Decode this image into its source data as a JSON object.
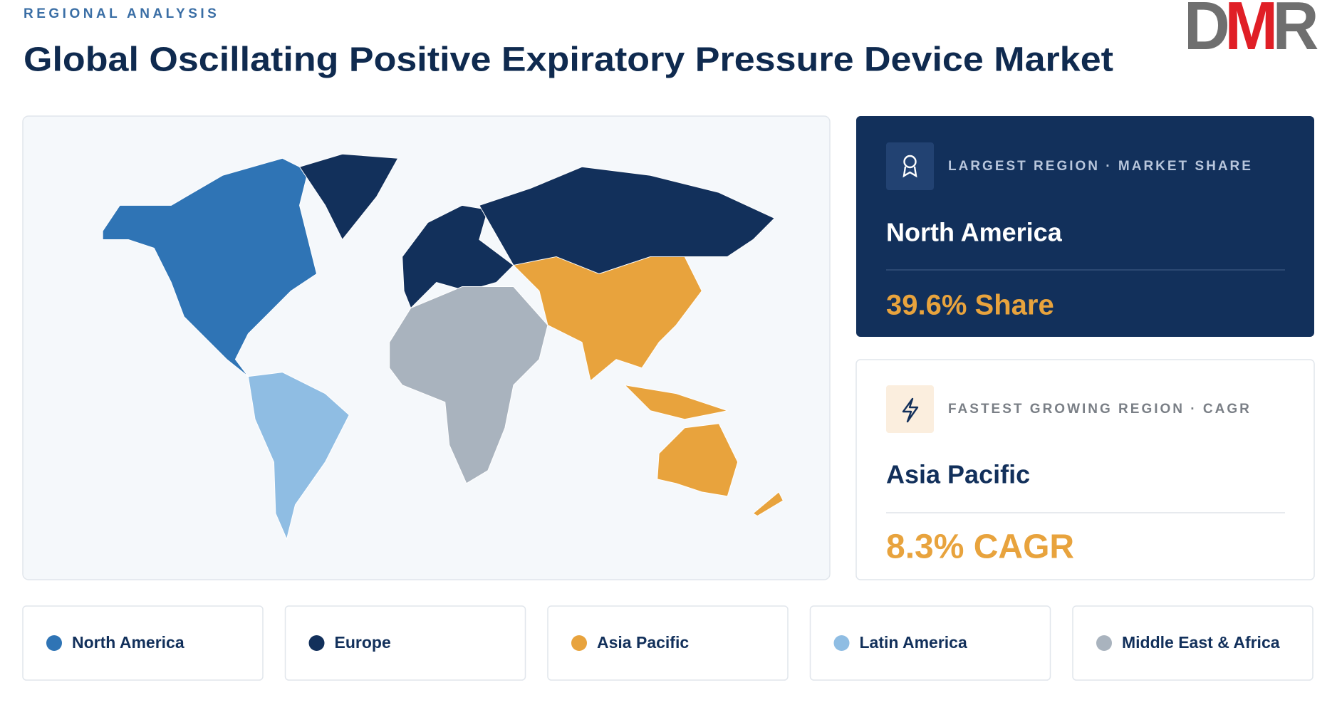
{
  "header": {
    "eyebrow": "REGIONAL ANALYSIS",
    "title": "Global Oscillating Positive Expiratory Pressure Device Market",
    "logo": "DMR"
  },
  "cards": [
    {
      "label": "LARGEST REGION  ·  MARKET SHARE",
      "region": "North America",
      "value": "39.6% Share"
    },
    {
      "label": "FASTEST GROWING REGION  ·  CAGR",
      "region": "Asia Pacific",
      "value": "8.3% CAGR"
    }
  ],
  "legend": [
    {
      "name": "North America",
      "color": "#2f74b5"
    },
    {
      "name": "Europe",
      "color": "#12305b"
    },
    {
      "name": "Asia Pacific",
      "color": "#e8a33d"
    },
    {
      "name": "Latin America",
      "color": "#8fbde3"
    },
    {
      "name": "Middle East & Africa",
      "color": "#a9b3be"
    }
  ]
}
